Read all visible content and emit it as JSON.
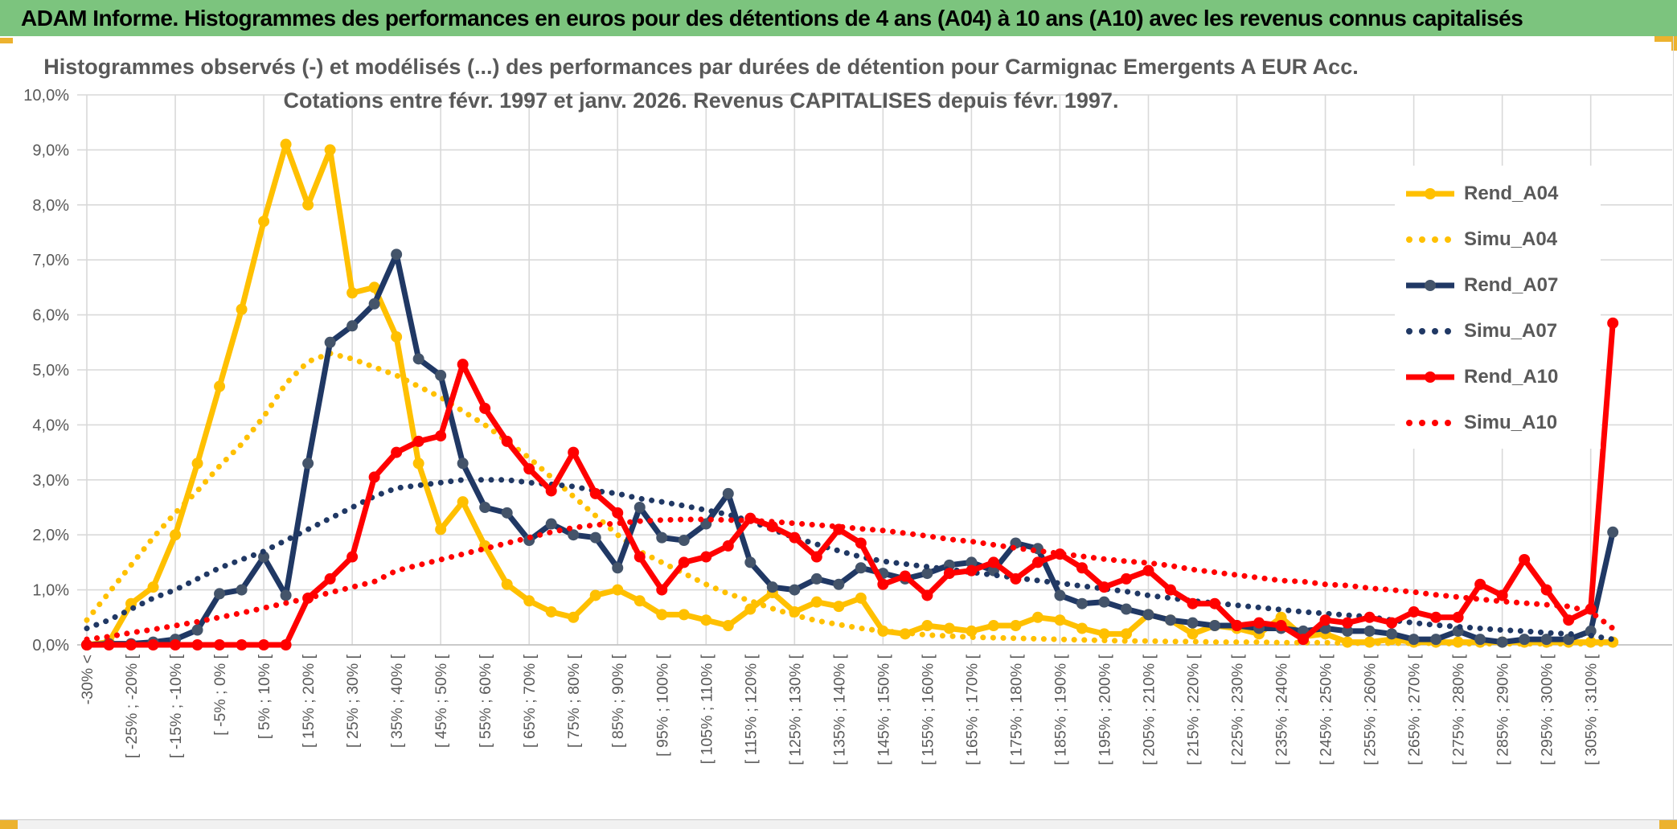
{
  "banner": {
    "text": "ADAM Informe. Histogrammes des performances en euros pour des détentions de 4 ans (A04) à 10 ans (A10) avec les revenus connus capitalisés",
    "bg_color": "#7CC47E"
  },
  "title": {
    "line1": "Histogrammes observés (-) et modélisés (...) des performances par durées de détention pour Carmignac Emergents A EUR Acc.",
    "line2": "Cotations entre févr. 1997 et janv. 2026. Revenus CAPITALISES depuis févr. 1997."
  },
  "legend": {
    "items": [
      {
        "label": "Rend_A04",
        "style": "solid",
        "color": "#FFC000",
        "marker_color": "#FFC000"
      },
      {
        "label": "Simu_A04",
        "style": "dotted",
        "color": "#FFC000"
      },
      {
        "label": "Rend_A07",
        "style": "solid",
        "color": "#203864",
        "marker_color": "#44546A"
      },
      {
        "label": "Simu_A07",
        "style": "dotted",
        "color": "#203864"
      },
      {
        "label": "Rend_A10",
        "style": "solid",
        "color": "#FF0000",
        "marker_color": "#FF0000"
      },
      {
        "label": "Simu_A10",
        "style": "dotted",
        "color": "#FF0000"
      }
    ]
  },
  "chart_data": {
    "type": "line",
    "title": "Histogrammes observés (-) et modélisés (...) des performances par durées de détention pour Carmignac Emergents A EUR Acc.",
    "subtitle": "Cotations entre févr. 1997 et janv. 2026. Revenus CAPITALISES depuis févr. 1997.",
    "ylabel": "",
    "xlabel": "",
    "y_unit": "%",
    "ylim": [
      0,
      10
    ],
    "grid": true,
    "legend_position": "right-inside",
    "n_bins": 70,
    "y_tick_labels": [
      "0,0%",
      "1,0%",
      "2,0%",
      "3,0%",
      "4,0%",
      "5,0%",
      "6,0%",
      "7,0%",
      "8,0%",
      "9,0%",
      "10,0%"
    ],
    "x_tick_labels_every_2_bins": [
      "-30% <",
      "[ -25% ; -20% [",
      "[ -15% ; -10% [",
      "[ -5% ; 0% [",
      "[ 5% ; 10% [",
      "[ 15% ; 20% [",
      "[ 25% ; 30% [",
      "[ 35% ; 40% [",
      "[ 45% ; 50% [",
      "[ 55% ; 60% [",
      "[ 65% ; 70% [",
      "[ 75% ; 80% [",
      "[ 85% ; 90% [",
      "[ 95% ; 100% [",
      "[ 105% ; 110% [",
      "[ 115% ; 120% [",
      "[ 125% ; 130% [",
      "[ 135% ; 140% [",
      "[ 145% ; 150% [",
      "[ 155% ; 160% [",
      "[ 165% ; 170% [",
      "[ 175% ; 180% [",
      "[ 185% ; 190% [",
      "[ 195% ; 200% [",
      "[ 205% ; 210% [",
      "[ 215% ; 220% [",
      "[ 225% ; 230% [",
      "[ 235% ; 240% [",
      "[ 245% ; 250% [",
      "[ 255% ; 260% [",
      "[ 265% ; 270% [",
      "[ 275% ; 280% [",
      "[ 285% ; 290% [",
      "[ 295% ; 300% [",
      "[ 305% ; 310% ["
    ],
    "series": [
      {
        "name": "Rend_A04",
        "style": "solid",
        "color": "#FFC000",
        "marker_color": "#FFC000",
        "values": [
          0,
          0.05,
          0.75,
          1.05,
          2.0,
          3.3,
          4.7,
          6.1,
          7.7,
          9.1,
          8.0,
          9.0,
          6.4,
          6.5,
          5.6,
          3.3,
          2.1,
          2.6,
          1.8,
          1.1,
          0.8,
          0.6,
          0.5,
          0.9,
          1.0,
          0.8,
          0.55,
          0.55,
          0.45,
          0.35,
          0.65,
          0.95,
          0.6,
          0.78,
          0.7,
          0.85,
          0.25,
          0.2,
          0.35,
          0.3,
          0.25,
          0.35,
          0.35,
          0.5,
          0.45,
          0.3,
          0.2,
          0.2,
          0.55,
          0.45,
          0.2,
          0.35,
          0.3,
          0.2,
          0.5,
          0.15,
          0.2,
          0.05,
          0.05,
          0.1,
          0.05,
          0.05,
          0.05,
          0.05,
          0.05,
          0.05,
          0.05,
          0.05,
          0.05,
          0.05
        ]
      },
      {
        "name": "Simu_A04",
        "style": "dotted",
        "color": "#FFC000",
        "values": [
          0.45,
          0.95,
          1.45,
          1.95,
          2.4,
          2.8,
          3.25,
          3.65,
          4.15,
          4.75,
          5.15,
          5.3,
          5.2,
          5.05,
          4.9,
          4.7,
          4.5,
          4.25,
          4.0,
          3.7,
          3.4,
          3.05,
          2.7,
          2.35,
          2.0,
          1.7,
          1.5,
          1.3,
          1.1,
          0.93,
          0.8,
          0.66,
          0.54,
          0.44,
          0.37,
          0.3,
          0.25,
          0.22,
          0.18,
          0.16,
          0.14,
          0.13,
          0.12,
          0.11,
          0.1,
          0.09,
          0.08,
          0.07,
          0.07,
          0.06,
          0.06,
          0.05,
          0.05,
          0.05,
          0.04,
          0.04,
          0.04,
          0.03,
          0.03,
          0.03,
          0.03,
          0.03,
          0.02,
          0.02,
          0.02,
          0.02,
          0.02,
          0.02,
          0.02,
          0.01
        ]
      },
      {
        "name": "Rend_A07",
        "style": "solid",
        "color": "#203864",
        "marker_color": "#44546A",
        "values": [
          0,
          0.02,
          0.02,
          0.05,
          0.1,
          0.27,
          0.93,
          1.0,
          1.6,
          0.9,
          3.3,
          5.5,
          5.8,
          6.2,
          7.1,
          5.2,
          4.9,
          3.3,
          2.5,
          2.4,
          1.9,
          2.2,
          2.0,
          1.95,
          1.4,
          2.5,
          1.95,
          1.9,
          2.2,
          2.75,
          1.5,
          1.05,
          1.0,
          1.2,
          1.1,
          1.4,
          1.3,
          1.2,
          1.3,
          1.45,
          1.5,
          1.35,
          1.85,
          1.75,
          0.9,
          0.75,
          0.78,
          0.65,
          0.55,
          0.45,
          0.4,
          0.35,
          0.35,
          0.3,
          0.3,
          0.25,
          0.3,
          0.25,
          0.25,
          0.2,
          0.1,
          0.1,
          0.25,
          0.1,
          0.05,
          0.1,
          0.1,
          0.1,
          0.25,
          2.05
        ]
      },
      {
        "name": "Simu_A07",
        "style": "dotted",
        "color": "#203864",
        "values": [
          0.3,
          0.45,
          0.65,
          0.85,
          1.0,
          1.2,
          1.4,
          1.55,
          1.7,
          1.9,
          2.1,
          2.3,
          2.5,
          2.7,
          2.85,
          2.9,
          2.95,
          3.0,
          3.0,
          3.0,
          2.95,
          2.92,
          2.88,
          2.8,
          2.75,
          2.66,
          2.6,
          2.53,
          2.45,
          2.37,
          2.25,
          2.1,
          1.95,
          1.83,
          1.71,
          1.6,
          1.52,
          1.47,
          1.42,
          1.37,
          1.32,
          1.27,
          1.22,
          1.17,
          1.12,
          1.07,
          1.02,
          0.97,
          0.9,
          0.85,
          0.8,
          0.76,
          0.72,
          0.68,
          0.64,
          0.6,
          0.57,
          0.54,
          0.51,
          0.45,
          0.4,
          0.36,
          0.33,
          0.3,
          0.27,
          0.25,
          0.22,
          0.2,
          0.17,
          0.1
        ]
      },
      {
        "name": "Rend_A10",
        "style": "solid",
        "color": "#FF0000",
        "marker_color": "#FF0000",
        "values": [
          0,
          0,
          0,
          0,
          0,
          0,
          0,
          0,
          0,
          0,
          0.85,
          1.2,
          1.6,
          3.05,
          3.5,
          3.7,
          3.8,
          5.1,
          4.3,
          3.7,
          3.2,
          2.8,
          3.5,
          2.75,
          2.4,
          1.6,
          1.0,
          1.5,
          1.6,
          1.8,
          2.3,
          2.15,
          1.95,
          1.6,
          2.1,
          1.85,
          1.1,
          1.25,
          0.9,
          1.3,
          1.35,
          1.5,
          1.2,
          1.5,
          1.65,
          1.4,
          1.05,
          1.2,
          1.35,
          1.0,
          0.75,
          0.75,
          0.35,
          0.4,
          0.35,
          0.1,
          0.45,
          0.4,
          0.5,
          0.4,
          0.6,
          0.5,
          0.5,
          1.1,
          0.9,
          1.55,
          1.0,
          0.45,
          0.65,
          5.85
        ]
      },
      {
        "name": "Simu_A10",
        "style": "dotted",
        "color": "#FF0000",
        "values": [
          0.1,
          0.15,
          0.22,
          0.28,
          0.35,
          0.42,
          0.5,
          0.58,
          0.67,
          0.76,
          0.85,
          0.95,
          1.05,
          1.15,
          1.35,
          1.45,
          1.55,
          1.65,
          1.75,
          1.85,
          1.95,
          2.05,
          2.13,
          2.18,
          2.21,
          2.25,
          2.27,
          2.28,
          2.28,
          2.27,
          2.26,
          2.24,
          2.21,
          2.18,
          2.15,
          2.11,
          2.08,
          2.03,
          1.98,
          1.92,
          1.88,
          1.82,
          1.76,
          1.71,
          1.66,
          1.61,
          1.56,
          1.52,
          1.49,
          1.44,
          1.37,
          1.32,
          1.27,
          1.22,
          1.17,
          1.15,
          1.1,
          1.08,
          1.03,
          1.0,
          0.96,
          0.91,
          0.87,
          0.83,
          0.79,
          0.76,
          0.73,
          0.7,
          0.6,
          0.3
        ]
      }
    ]
  },
  "colors": {
    "grid": "#D9D9D9",
    "axis": "#BFBFBF",
    "text_grey": "#595959",
    "gold_accent": "#ECB22E"
  }
}
